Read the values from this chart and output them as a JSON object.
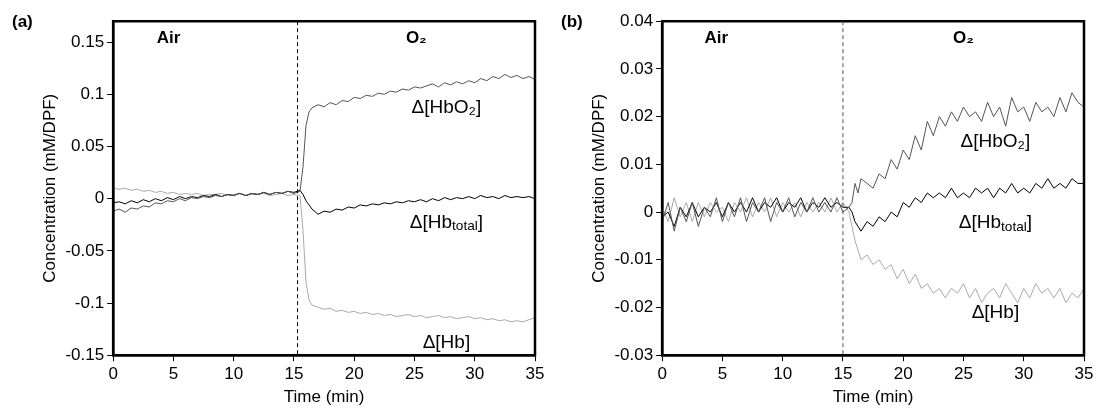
{
  "chart_data": [
    {
      "type": "line",
      "title": "(a)",
      "xlabel": "Time (min)",
      "ylabel": "Concentration (mM/DPF)",
      "xlim": [
        0,
        35
      ],
      "xticks": [
        0,
        5,
        10,
        15,
        20,
        25,
        30,
        35
      ],
      "ylim": [
        -0.15,
        0.17
      ],
      "yticks": [
        0.15,
        0.1,
        0.05,
        0,
        -0.05,
        -0.1,
        -0.15
      ],
      "grid": false,
      "legend": false,
      "marker": "none",
      "line_style": "solid",
      "x": [
        0,
        0.5,
        1,
        1.5,
        2,
        2.5,
        3,
        3.5,
        4,
        4.5,
        5,
        5.5,
        6,
        6.5,
        7,
        7.5,
        8,
        8.5,
        9,
        9.5,
        10,
        10.5,
        11,
        11.5,
        12,
        12.5,
        13,
        13.5,
        14,
        14.5,
        15,
        15.5,
        15.75,
        16,
        16.25,
        16.5,
        17,
        17.5,
        18,
        18.5,
        19,
        19.5,
        20,
        20.5,
        21,
        21.5,
        22,
        22.5,
        23,
        23.5,
        24,
        24.5,
        25,
        25.5,
        26,
        26.5,
        27,
        27.5,
        28,
        28.5,
        29,
        29.5,
        30,
        30.5,
        31,
        31.5,
        32,
        32.5,
        33,
        33.5,
        34,
        34.5,
        35
      ],
      "ref_lines": [
        {
          "axis": "x",
          "value": 15.3,
          "line_style": "dashed",
          "color": "#000000"
        }
      ],
      "annotations": [
        "Air",
        "O₂"
      ],
      "series": [
        {
          "name": "Δ[HbO₂]",
          "color": "#555555",
          "values": [
            -0.012,
            -0.01,
            -0.013,
            -0.009,
            -0.01,
            -0.007,
            -0.008,
            -0.004,
            -0.005,
            -0.002,
            -0.003,
            0,
            -0.002,
            0.001,
            0,
            0.002,
            0.001,
            0.003,
            0.002,
            0.004,
            0.003,
            0.005,
            0.003,
            0.005,
            0.004,
            0.006,
            0.004,
            0.006,
            0.005,
            0.007,
            0.005,
            0.007,
            0.03,
            0.07,
            0.083,
            0.087,
            0.09,
            0.088,
            0.092,
            0.09,
            0.094,
            0.093,
            0.097,
            0.096,
            0.099,
            0.098,
            0.101,
            0.1,
            0.103,
            0.102,
            0.105,
            0.104,
            0.107,
            0.106,
            0.108,
            0.11,
            0.107,
            0.111,
            0.109,
            0.112,
            0.11,
            0.113,
            0.111,
            0.115,
            0.113,
            0.117,
            0.115,
            0.119,
            0.116,
            0.118,
            0.115,
            0.117,
            0.114
          ]
        },
        {
          "name": "Δ[Hb$_{total}$]",
          "color": "#000000",
          "values": [
            -0.004,
            -0.003,
            -0.005,
            -0.002,
            -0.004,
            -0.001,
            -0.003,
            0,
            -0.002,
            0.001,
            -0.001,
            0.002,
            0,
            0.002,
            0.001,
            0.003,
            0.002,
            0.004,
            0.002,
            0.004,
            0.003,
            0.005,
            0.003,
            0.005,
            0.004,
            0.006,
            0.004,
            0.006,
            0.005,
            0.007,
            0.006,
            0.008,
            0.004,
            -0.002,
            -0.006,
            -0.01,
            -0.015,
            -0.012,
            -0.013,
            -0.01,
            -0.011,
            -0.008,
            -0.009,
            -0.006,
            -0.007,
            -0.005,
            -0.006,
            -0.004,
            -0.005,
            -0.003,
            -0.004,
            -0.002,
            -0.003,
            -0.001,
            -0.003,
            0,
            -0.002,
            0.001,
            -0.001,
            0.001,
            0,
            0.002,
            0,
            0.003,
            0.001,
            0.002,
            0,
            0.003,
            0.001,
            0.002,
            0.001,
            0.002,
            0
          ]
        },
        {
          "name": "Δ[Hb]",
          "color": "#aaaaaa",
          "values": [
            0.01,
            0.009,
            0.01,
            0.008,
            0.009,
            0.007,
            0.008,
            0.006,
            0.007,
            0.005,
            0.006,
            0.004,
            0.005,
            0.004,
            0.005,
            0.003,
            0.004,
            0.004,
            0.005,
            0.003,
            0.004,
            0.005,
            0.003,
            0.004,
            0.004,
            0.005,
            0.003,
            0.004,
            0.005,
            0.003,
            0.004,
            0.003,
            -0.03,
            -0.08,
            -0.097,
            -0.102,
            -0.104,
            -0.106,
            -0.105,
            -0.108,
            -0.107,
            -0.109,
            -0.108,
            -0.11,
            -0.109,
            -0.111,
            -0.11,
            -0.112,
            -0.111,
            -0.113,
            -0.112,
            -0.111,
            -0.113,
            -0.112,
            -0.114,
            -0.113,
            -0.112,
            -0.114,
            -0.113,
            -0.115,
            -0.114,
            -0.113,
            -0.115,
            -0.114,
            -0.116,
            -0.115,
            -0.117,
            -0.116,
            -0.118,
            -0.117,
            -0.118,
            -0.116,
            -0.114
          ]
        }
      ]
    },
    {
      "type": "line",
      "title": "(b)",
      "xlabel": "Time (min)",
      "ylabel": "Concentration (mM/DPF)",
      "xlim": [
        0,
        35
      ],
      "xticks": [
        0,
        5,
        10,
        15,
        20,
        25,
        30,
        35
      ],
      "ylim": [
        -0.03,
        0.04
      ],
      "yticks": [
        0.04,
        0.03,
        0.02,
        0.01,
        0,
        -0.01,
        -0.02,
        -0.03
      ],
      "grid": false,
      "legend": false,
      "marker": "none",
      "line_style": "solid",
      "x": [
        0,
        0.5,
        1,
        1.5,
        2,
        2.5,
        3,
        3.5,
        4,
        4.5,
        5,
        5.5,
        6,
        6.5,
        7,
        7.5,
        8,
        8.5,
        9,
        9.5,
        10,
        10.5,
        11,
        11.5,
        12,
        12.5,
        13,
        13.5,
        14,
        14.5,
        15,
        15.5,
        15.75,
        16,
        16.25,
        16.5,
        17,
        17.5,
        18,
        18.5,
        19,
        19.5,
        20,
        20.5,
        21,
        21.5,
        22,
        22.5,
        23,
        23.5,
        24,
        24.5,
        25,
        25.5,
        26,
        26.5,
        27,
        27.5,
        28,
        28.5,
        29,
        29.5,
        30,
        30.5,
        31,
        31.5,
        32,
        32.5,
        33,
        33.5,
        34,
        34.5,
        35
      ],
      "ref_lines": [
        {
          "axis": "x",
          "value": 15,
          "line_style": "dashed",
          "color": "#555555"
        }
      ],
      "annotations": [
        "Air",
        "O₂"
      ],
      "series": [
        {
          "name": "Δ[HbO₂]",
          "color": "#555555",
          "values": [
            -0.002,
            0.002,
            -0.004,
            0.001,
            -0.002,
            0.002,
            -0.003,
            0.001,
            -0.001,
            0.003,
            -0.002,
            0.002,
            -0.001,
            0.003,
            -0.002,
            0.002,
            0,
            0.003,
            -0.002,
            0.002,
            0,
            0.003,
            -0.001,
            0.002,
            0,
            0.003,
            0,
            0.002,
            0,
            0.003,
            0,
            0.001,
            0.002,
            0.006,
            0.004,
            0.007,
            0.006,
            0.005,
            0.008,
            0.007,
            0.011,
            0.009,
            0.013,
            0.011,
            0.016,
            0.013,
            0.019,
            0.016,
            0.02,
            0.018,
            0.021,
            0.019,
            0.022,
            0.02,
            0.021,
            0.019,
            0.023,
            0.02,
            0.022,
            0.018,
            0.024,
            0.021,
            0.022,
            0.019,
            0.023,
            0.021,
            0.022,
            0.02,
            0.024,
            0.021,
            0.025,
            0.023,
            0.022
          ]
        },
        {
          "name": "Δ[Hb$_{total}$]",
          "color": "#000000",
          "values": [
            -0.001,
            0,
            -0.003,
            0.001,
            -0.001,
            0.002,
            -0.001,
            0.001,
            0,
            0.002,
            -0.001,
            0.002,
            0,
            0.002,
            0,
            0.003,
            0,
            0.002,
            0.001,
            0.003,
            0,
            0.002,
            0.001,
            0.003,
            0,
            0.002,
            0.001,
            0.003,
            0.001,
            0.002,
            0.001,
            0.001,
            0,
            -0.002,
            -0.003,
            -0.004,
            -0.002,
            -0.003,
            -0.001,
            -0.002,
            0,
            -0.001,
            0.002,
            0.001,
            0.003,
            0.002,
            0.004,
            0.003,
            0.004,
            0.003,
            0.005,
            0.003,
            0.004,
            0.003,
            0.005,
            0.004,
            0.005,
            0.003,
            0.005,
            0.004,
            0.006,
            0.004,
            0.005,
            0.004,
            0.006,
            0.005,
            0.007,
            0.005,
            0.006,
            0.005,
            0.007,
            0.006,
            0.006
          ]
        },
        {
          "name": "Δ[Hb]",
          "color": "#aaaaaa",
          "values": [
            0.001,
            -0.002,
            0.003,
            -0.001,
            0.002,
            -0.002,
            0.002,
            -0.001,
            0.002,
            0,
            0.001,
            -0.002,
            0.002,
            0,
            0.003,
            -0.001,
            0.002,
            0,
            0.003,
            -0.001,
            0.002,
            0,
            0.002,
            -0.001,
            0.002,
            0,
            0.002,
            0,
            0.003,
            0,
            0.002,
            0,
            -0.003,
            -0.006,
            -0.008,
            -0.01,
            -0.009,
            -0.011,
            -0.01,
            -0.012,
            -0.011,
            -0.014,
            -0.012,
            -0.015,
            -0.013,
            -0.016,
            -0.015,
            -0.017,
            -0.016,
            -0.018,
            -0.016,
            -0.017,
            -0.015,
            -0.018,
            -0.016,
            -0.019,
            -0.017,
            -0.016,
            -0.018,
            -0.015,
            -0.017,
            -0.019,
            -0.016,
            -0.018,
            -0.015,
            -0.017,
            -0.016,
            -0.018,
            -0.016,
            -0.019,
            -0.017,
            -0.018,
            -0.016
          ]
        }
      ]
    }
  ]
}
